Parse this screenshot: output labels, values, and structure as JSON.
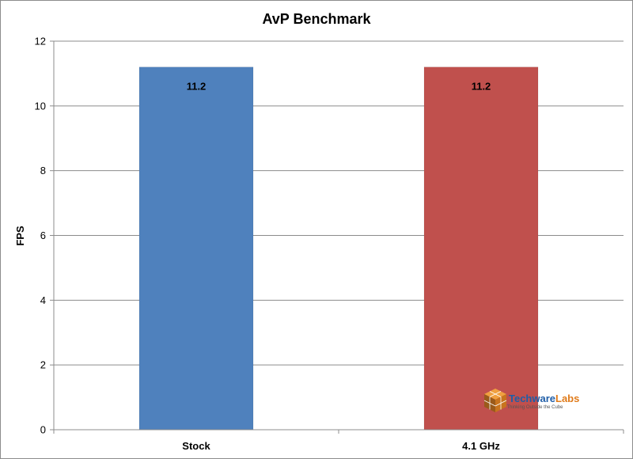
{
  "chart_data": {
    "type": "bar",
    "title": "AvP Benchmark",
    "xlabel": "",
    "ylabel": "FPS",
    "categories": [
      "Stock",
      "4.1 GHz"
    ],
    "values": [
      11.2,
      11.2
    ],
    "data_labels": [
      "11.2",
      "11.2"
    ],
    "ylim": [
      0,
      12
    ],
    "yticks": [
      0,
      2,
      4,
      6,
      8,
      10,
      12
    ],
    "bar_colors": [
      "#4f81bd",
      "#c0504d"
    ],
    "grid": true,
    "legend": "none"
  },
  "watermark": {
    "brand_part1": "Techware",
    "brand_part2": "Labs",
    "tagline": "Thinking Outside the Cube",
    "color1": "#1f5ea8",
    "color2": "#e07b1a",
    "icon": "cube-logo-icon"
  }
}
